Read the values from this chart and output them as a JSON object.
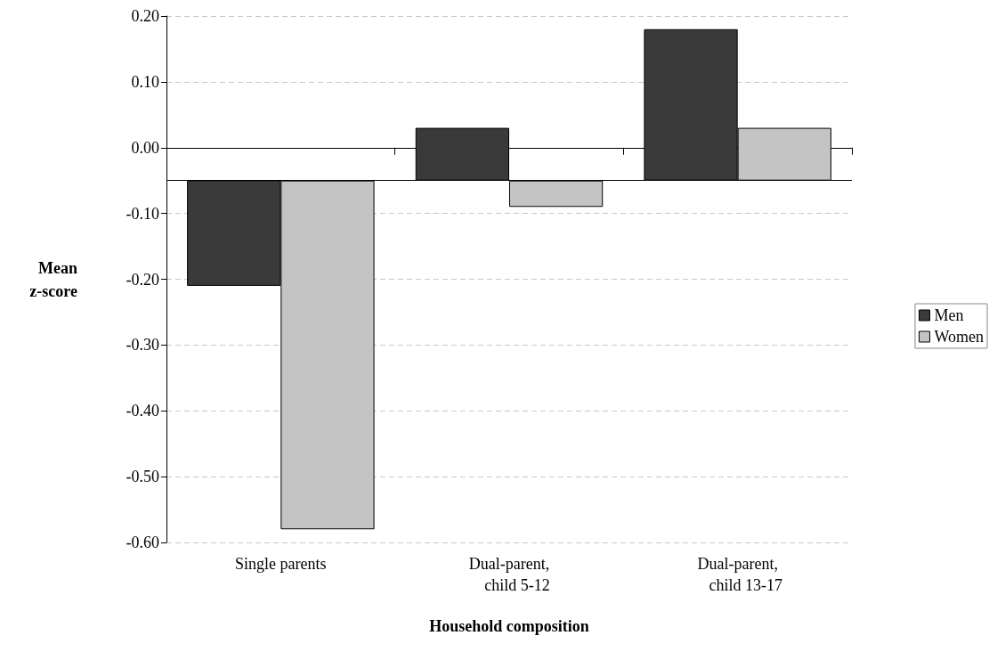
{
  "chart_data": {
    "type": "bar",
    "xlabel": "Household composition",
    "ylabel": "Mean\nz-score",
    "categories": [
      "Single parents",
      "Dual-parent,\n    child 5-12",
      "Dual-parent,\n    child 13-17"
    ],
    "series": [
      {
        "name": "Men",
        "color": "#3a3a3a",
        "base": [
          -0.05,
          -0.05,
          -0.05
        ],
        "values": [
          -0.16,
          0.08,
          0.23
        ]
      },
      {
        "name": "Women",
        "color": "#c4c4c4",
        "base": [
          -0.05,
          -0.05,
          -0.05
        ],
        "values": [
          -0.53,
          -0.04,
          0.08
        ]
      }
    ],
    "ylim": [
      -0.6,
      0.2
    ],
    "yticks": [
      {
        "value": -0.6,
        "label": "-0.60"
      },
      {
        "value": -0.5,
        "label": "-0.50"
      },
      {
        "value": -0.4,
        "label": "-0.40"
      },
      {
        "value": -0.3,
        "label": "-0.30"
      },
      {
        "value": -0.2,
        "label": "-0.20"
      },
      {
        "value": -0.1,
        "label": "-0.10"
      },
      {
        "value": 0,
        "label": "0.00"
      },
      {
        "value": 0.1,
        "label": "0.10"
      },
      {
        "value": 0.2,
        "label": "0.20"
      }
    ],
    "ref_lines": [
      {
        "axis": "y",
        "value": -0.05,
        "color": "#000000"
      }
    ],
    "grid": "y",
    "legend": "right"
  }
}
